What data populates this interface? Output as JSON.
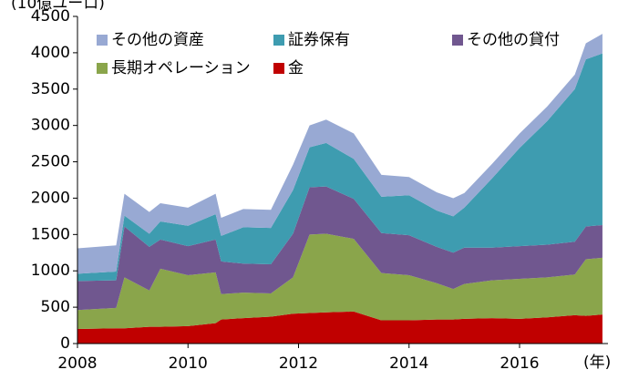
{
  "chart_data": {
    "type": "stacked_area",
    "y_label": "(10億ユーロ)",
    "x_label": "(年)",
    "x": [
      2008.0,
      2008.7,
      2008.85,
      2009.3,
      2009.5,
      2010.0,
      2010.5,
      2010.6,
      2011.0,
      2011.5,
      2011.9,
      2012.2,
      2012.5,
      2013.0,
      2013.5,
      2014.0,
      2014.5,
      2014.8,
      2015.0,
      2015.5,
      2016.0,
      2016.5,
      2017.0,
      2017.2,
      2017.5
    ],
    "series": [
      {
        "name": "金",
        "color": "#c00000",
        "values": [
          200,
          210,
          210,
          230,
          230,
          240,
          280,
          330,
          350,
          370,
          410,
          420,
          430,
          440,
          320,
          320,
          330,
          330,
          340,
          350,
          340,
          360,
          390,
          380,
          400
        ]
      },
      {
        "name": "長期オペレーション",
        "color": "#8aa54b",
        "values": [
          260,
          280,
          700,
          500,
          800,
          700,
          700,
          350,
          350,
          320,
          500,
          1080,
          1080,
          1000,
          650,
          620,
          500,
          420,
          480,
          520,
          550,
          550,
          560,
          780,
          780
        ]
      },
      {
        "name": "その他の貸付",
        "color": "#70578f",
        "values": [
          400,
          380,
          700,
          600,
          400,
          400,
          450,
          450,
          400,
          400,
          600,
          650,
          650,
          550,
          550,
          550,
          500,
          500,
          500,
          450,
          450,
          450,
          450,
          450,
          450
        ]
      },
      {
        "name": "証券保有",
        "color": "#3e9cb0",
        "values": [
          100,
          120,
          150,
          180,
          250,
          280,
          350,
          350,
          500,
          500,
          600,
          550,
          600,
          550,
          500,
          550,
          500,
          500,
          550,
          950,
          1350,
          1700,
          2100,
          2300,
          2360
        ]
      },
      {
        "name": "その他の資産",
        "color": "#98a9d3",
        "values": [
          350,
          360,
          300,
          300,
          250,
          250,
          280,
          250,
          250,
          250,
          350,
          300,
          320,
          350,
          300,
          250,
          250,
          250,
          200,
          200,
          200,
          200,
          200,
          220,
          270
        ]
      }
    ],
    "xlim": [
      2008,
      2017.6
    ],
    "xticks": [
      2008,
      2010,
      2012,
      2014,
      2016
    ],
    "ylim": [
      0,
      4500
    ],
    "yticks": [
      0,
      500,
      1000,
      1500,
      2000,
      2500,
      3000,
      3500,
      4000,
      4500
    ],
    "grid": false
  }
}
